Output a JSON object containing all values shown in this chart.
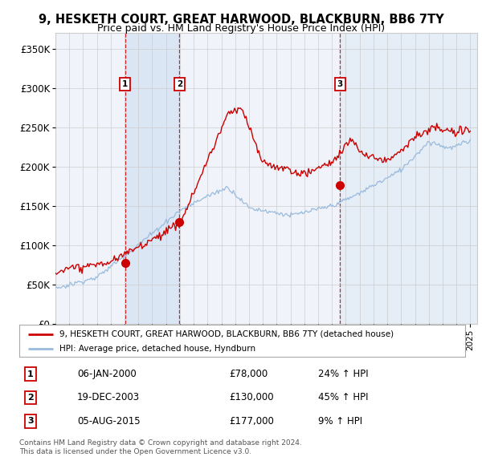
{
  "title1": "9, HESKETH COURT, GREAT HARWOOD, BLACKBURN, BB6 7TY",
  "title2": "Price paid vs. HM Land Registry's House Price Index (HPI)",
  "ylim": [
    0,
    370000
  ],
  "yticks": [
    0,
    50000,
    100000,
    150000,
    200000,
    250000,
    300000,
    350000
  ],
  "ytick_labels": [
    "£0",
    "£50K",
    "£100K",
    "£150K",
    "£200K",
    "£250K",
    "£300K",
    "£350K"
  ],
  "purchase_dates": [
    2000.03,
    2003.97,
    2015.59
  ],
  "purchase_prices": [
    78000,
    130000,
    177000
  ],
  "purchase_labels": [
    "1",
    "2",
    "3"
  ],
  "purchase_details": [
    {
      "num": "1",
      "date": "06-JAN-2000",
      "price": "£78,000",
      "change": "24% ↑ HPI"
    },
    {
      "num": "2",
      "date": "19-DEC-2003",
      "price": "£130,000",
      "change": "45% ↑ HPI"
    },
    {
      "num": "3",
      "date": "05-AUG-2015",
      "price": "£177,000",
      "change": "9% ↑ HPI"
    }
  ],
  "legend_property": "9, HESKETH COURT, GREAT HARWOOD, BLACKBURN, BB6 7TY (detached house)",
  "legend_hpi": "HPI: Average price, detached house, Hyndburn",
  "footer1": "Contains HM Land Registry data © Crown copyright and database right 2024.",
  "footer2": "This data is licensed under the Open Government Licence v3.0.",
  "line_color_property": "#cc0000",
  "line_color_hpi": "#99bbdd",
  "shade_color": "#ddeeff",
  "vline_color": "#cc0000",
  "box_color": "#cc0000",
  "grid_color": "#cccccc",
  "bg_color": "#f0f4fa",
  "fig_bg": "#ffffff"
}
